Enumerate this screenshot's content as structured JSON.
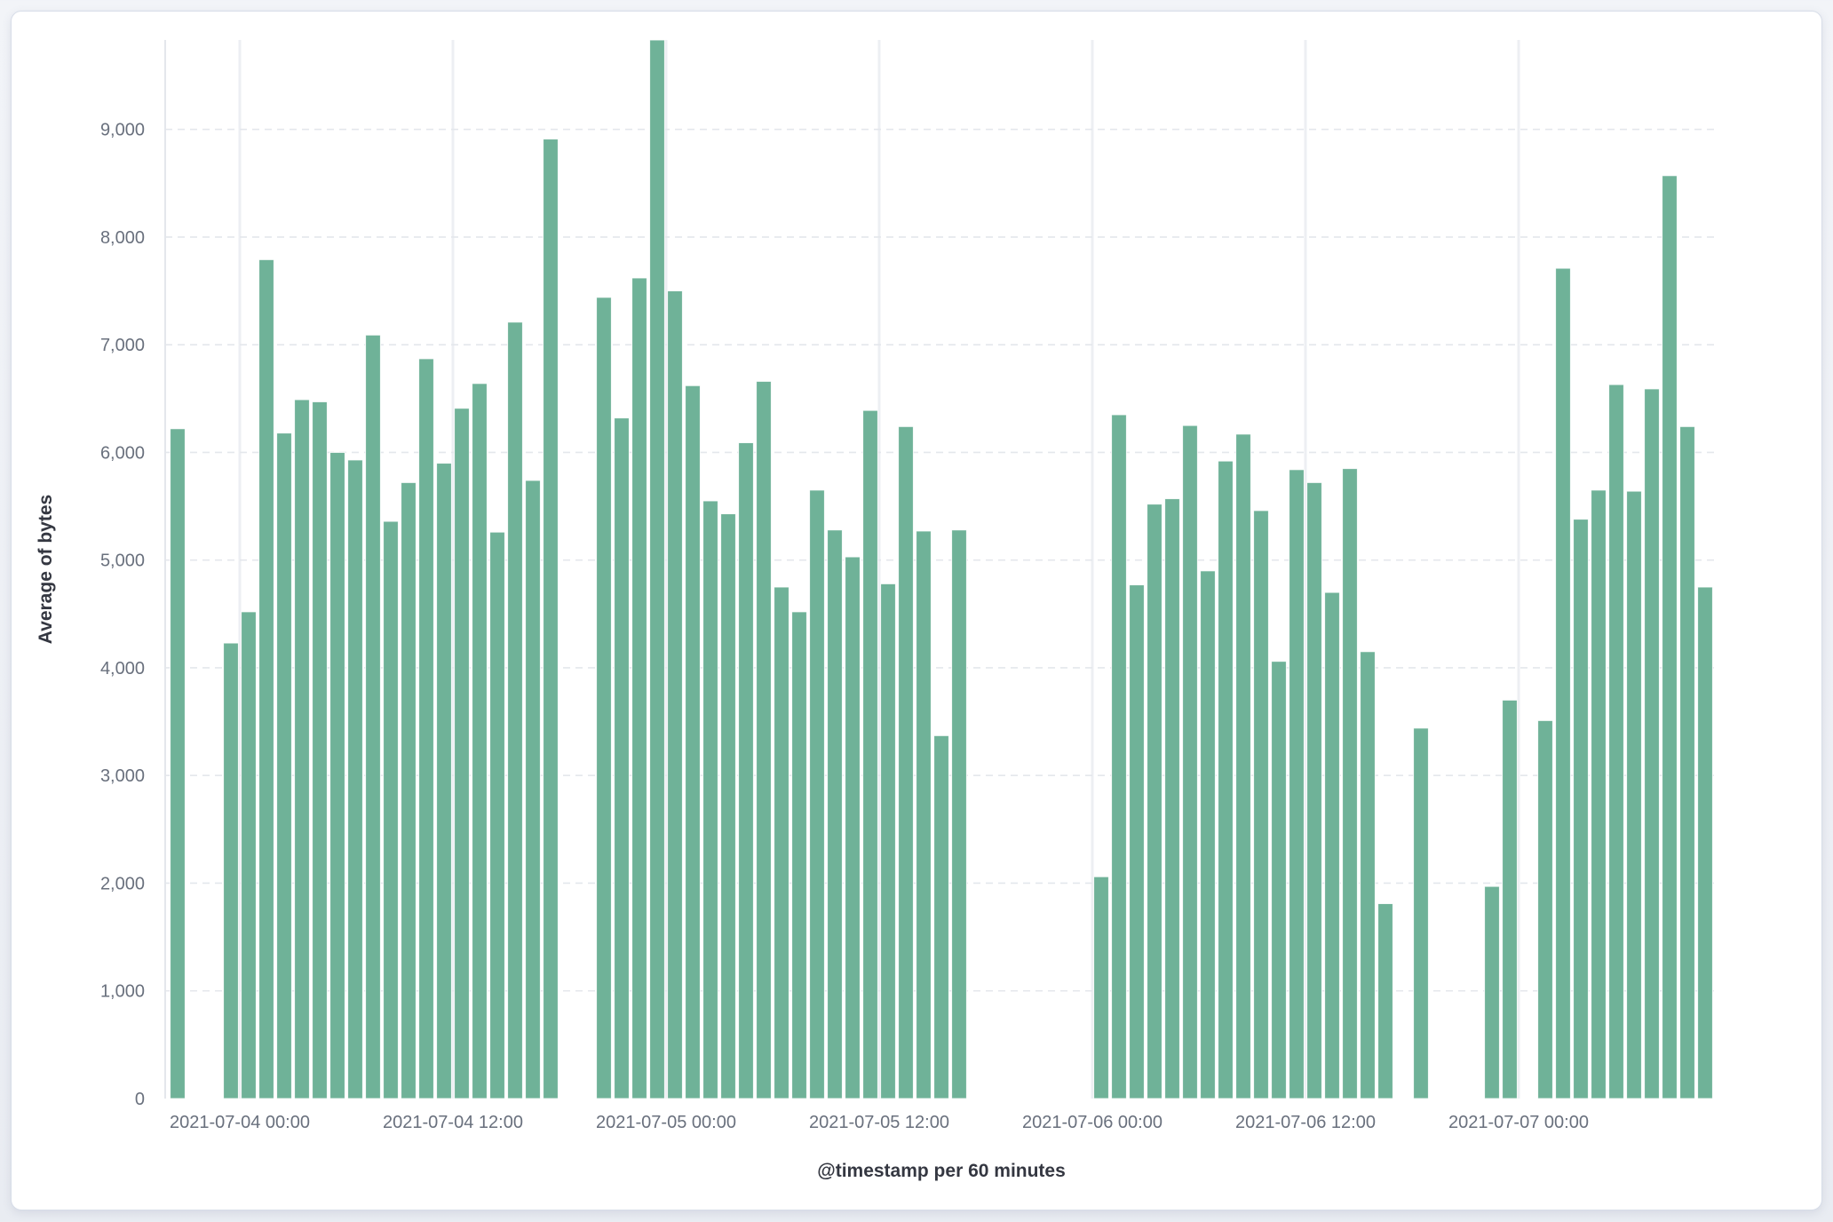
{
  "page": {
    "background_top": "#F2F4F8",
    "background_bottom": "#E9ECF2"
  },
  "panel": {
    "background": "#FFFFFF",
    "border_color": "#D7DDE8"
  },
  "chart_data": {
    "type": "bar",
    "title": "",
    "xlabel": "@timestamp per 60 minutes",
    "ylabel": "Average of bytes",
    "legend": false,
    "grid": true,
    "ylim": [
      0,
      9830
    ],
    "y_ticks": [
      0,
      1000,
      2000,
      3000,
      4000,
      5000,
      6000,
      7000,
      8000,
      9000
    ],
    "x_ticks": [
      "2021-07-04 00:00",
      "2021-07-04 12:00",
      "2021-07-05 00:00",
      "2021-07-05 12:00",
      "2021-07-06 00:00",
      "2021-07-06 12:00",
      "2021-07-07 00:00"
    ],
    "colors": {
      "bar": "#6FB298",
      "bar_stroke": "rgba(255,255,255,0.85)",
      "grid_vertical": "#EDEFF3",
      "grid_horizontal": "#E4E7EC",
      "axis_line": "#E4E7EC",
      "tick_text": "#69707D",
      "title_text": "#343741"
    },
    "bucket_interval": "60 minutes",
    "categories": [
      "2021-07-03 20:00",
      "2021-07-03 21:00",
      "2021-07-03 22:00",
      "2021-07-03 23:00",
      "2021-07-04 00:00",
      "2021-07-04 01:00",
      "2021-07-04 02:00",
      "2021-07-04 03:00",
      "2021-07-04 04:00",
      "2021-07-04 05:00",
      "2021-07-04 06:00",
      "2021-07-04 07:00",
      "2021-07-04 08:00",
      "2021-07-04 09:00",
      "2021-07-04 10:00",
      "2021-07-04 11:00",
      "2021-07-04 12:00",
      "2021-07-04 13:00",
      "2021-07-04 14:00",
      "2021-07-04 15:00",
      "2021-07-04 16:00",
      "2021-07-04 17:00",
      "2021-07-04 18:00",
      "2021-07-04 19:00",
      "2021-07-04 20:00",
      "2021-07-04 21:00",
      "2021-07-04 22:00",
      "2021-07-04 23:00",
      "2021-07-05 00:00",
      "2021-07-05 01:00",
      "2021-07-05 02:00",
      "2021-07-05 03:00",
      "2021-07-05 04:00",
      "2021-07-05 05:00",
      "2021-07-05 06:00",
      "2021-07-05 07:00",
      "2021-07-05 08:00",
      "2021-07-05 09:00",
      "2021-07-05 10:00",
      "2021-07-05 11:00",
      "2021-07-05 12:00",
      "2021-07-05 13:00",
      "2021-07-05 14:00",
      "2021-07-05 15:00",
      "2021-07-05 16:00",
      "2021-07-05 17:00",
      "2021-07-05 18:00",
      "2021-07-05 19:00",
      "2021-07-05 20:00",
      "2021-07-05 21:00",
      "2021-07-05 22:00",
      "2021-07-05 23:00",
      "2021-07-06 00:00",
      "2021-07-06 01:00",
      "2021-07-06 02:00",
      "2021-07-06 03:00",
      "2021-07-06 04:00",
      "2021-07-06 05:00",
      "2021-07-06 06:00",
      "2021-07-06 07:00",
      "2021-07-06 08:00",
      "2021-07-06 09:00",
      "2021-07-06 10:00",
      "2021-07-06 11:00",
      "2021-07-06 12:00",
      "2021-07-06 13:00",
      "2021-07-06 14:00",
      "2021-07-06 15:00",
      "2021-07-06 16:00",
      "2021-07-06 17:00",
      "2021-07-06 18:00",
      "2021-07-06 19:00",
      "2021-07-06 20:00",
      "2021-07-06 21:00",
      "2021-07-06 22:00",
      "2021-07-06 23:00",
      "2021-07-07 00:00",
      "2021-07-07 01:00",
      "2021-07-07 02:00",
      "2021-07-07 03:00",
      "2021-07-07 04:00",
      "2021-07-07 05:00",
      "2021-07-07 06:00",
      "2021-07-07 07:00",
      "2021-07-07 08:00",
      "2021-07-07 09:00",
      "2021-07-07 10:00"
    ],
    "values": [
      6220,
      null,
      null,
      4230,
      4520,
      7790,
      6180,
      6490,
      6470,
      6000,
      5930,
      7090,
      5360,
      5720,
      6870,
      5900,
      6410,
      6640,
      5260,
      7210,
      5740,
      8910,
      null,
      null,
      7440,
      6320,
      7620,
      9830,
      7500,
      6620,
      5550,
      5430,
      6090,
      6660,
      4750,
      4520,
      5650,
      5280,
      5030,
      6390,
      4780,
      6240,
      5270,
      3370,
      5280,
      null,
      null,
      null,
      null,
      null,
      null,
      null,
      2060,
      6350,
      4770,
      5520,
      5570,
      6250,
      4900,
      5920,
      6170,
      5460,
      4060,
      5840,
      5720,
      4700,
      5850,
      4150,
      1810,
      null,
      3440,
      null,
      null,
      null,
      1970,
      3700,
      null,
      3510,
      7710,
      5380,
      5650,
      6630,
      5640,
      6590,
      8570,
      6240,
      4750
    ]
  }
}
